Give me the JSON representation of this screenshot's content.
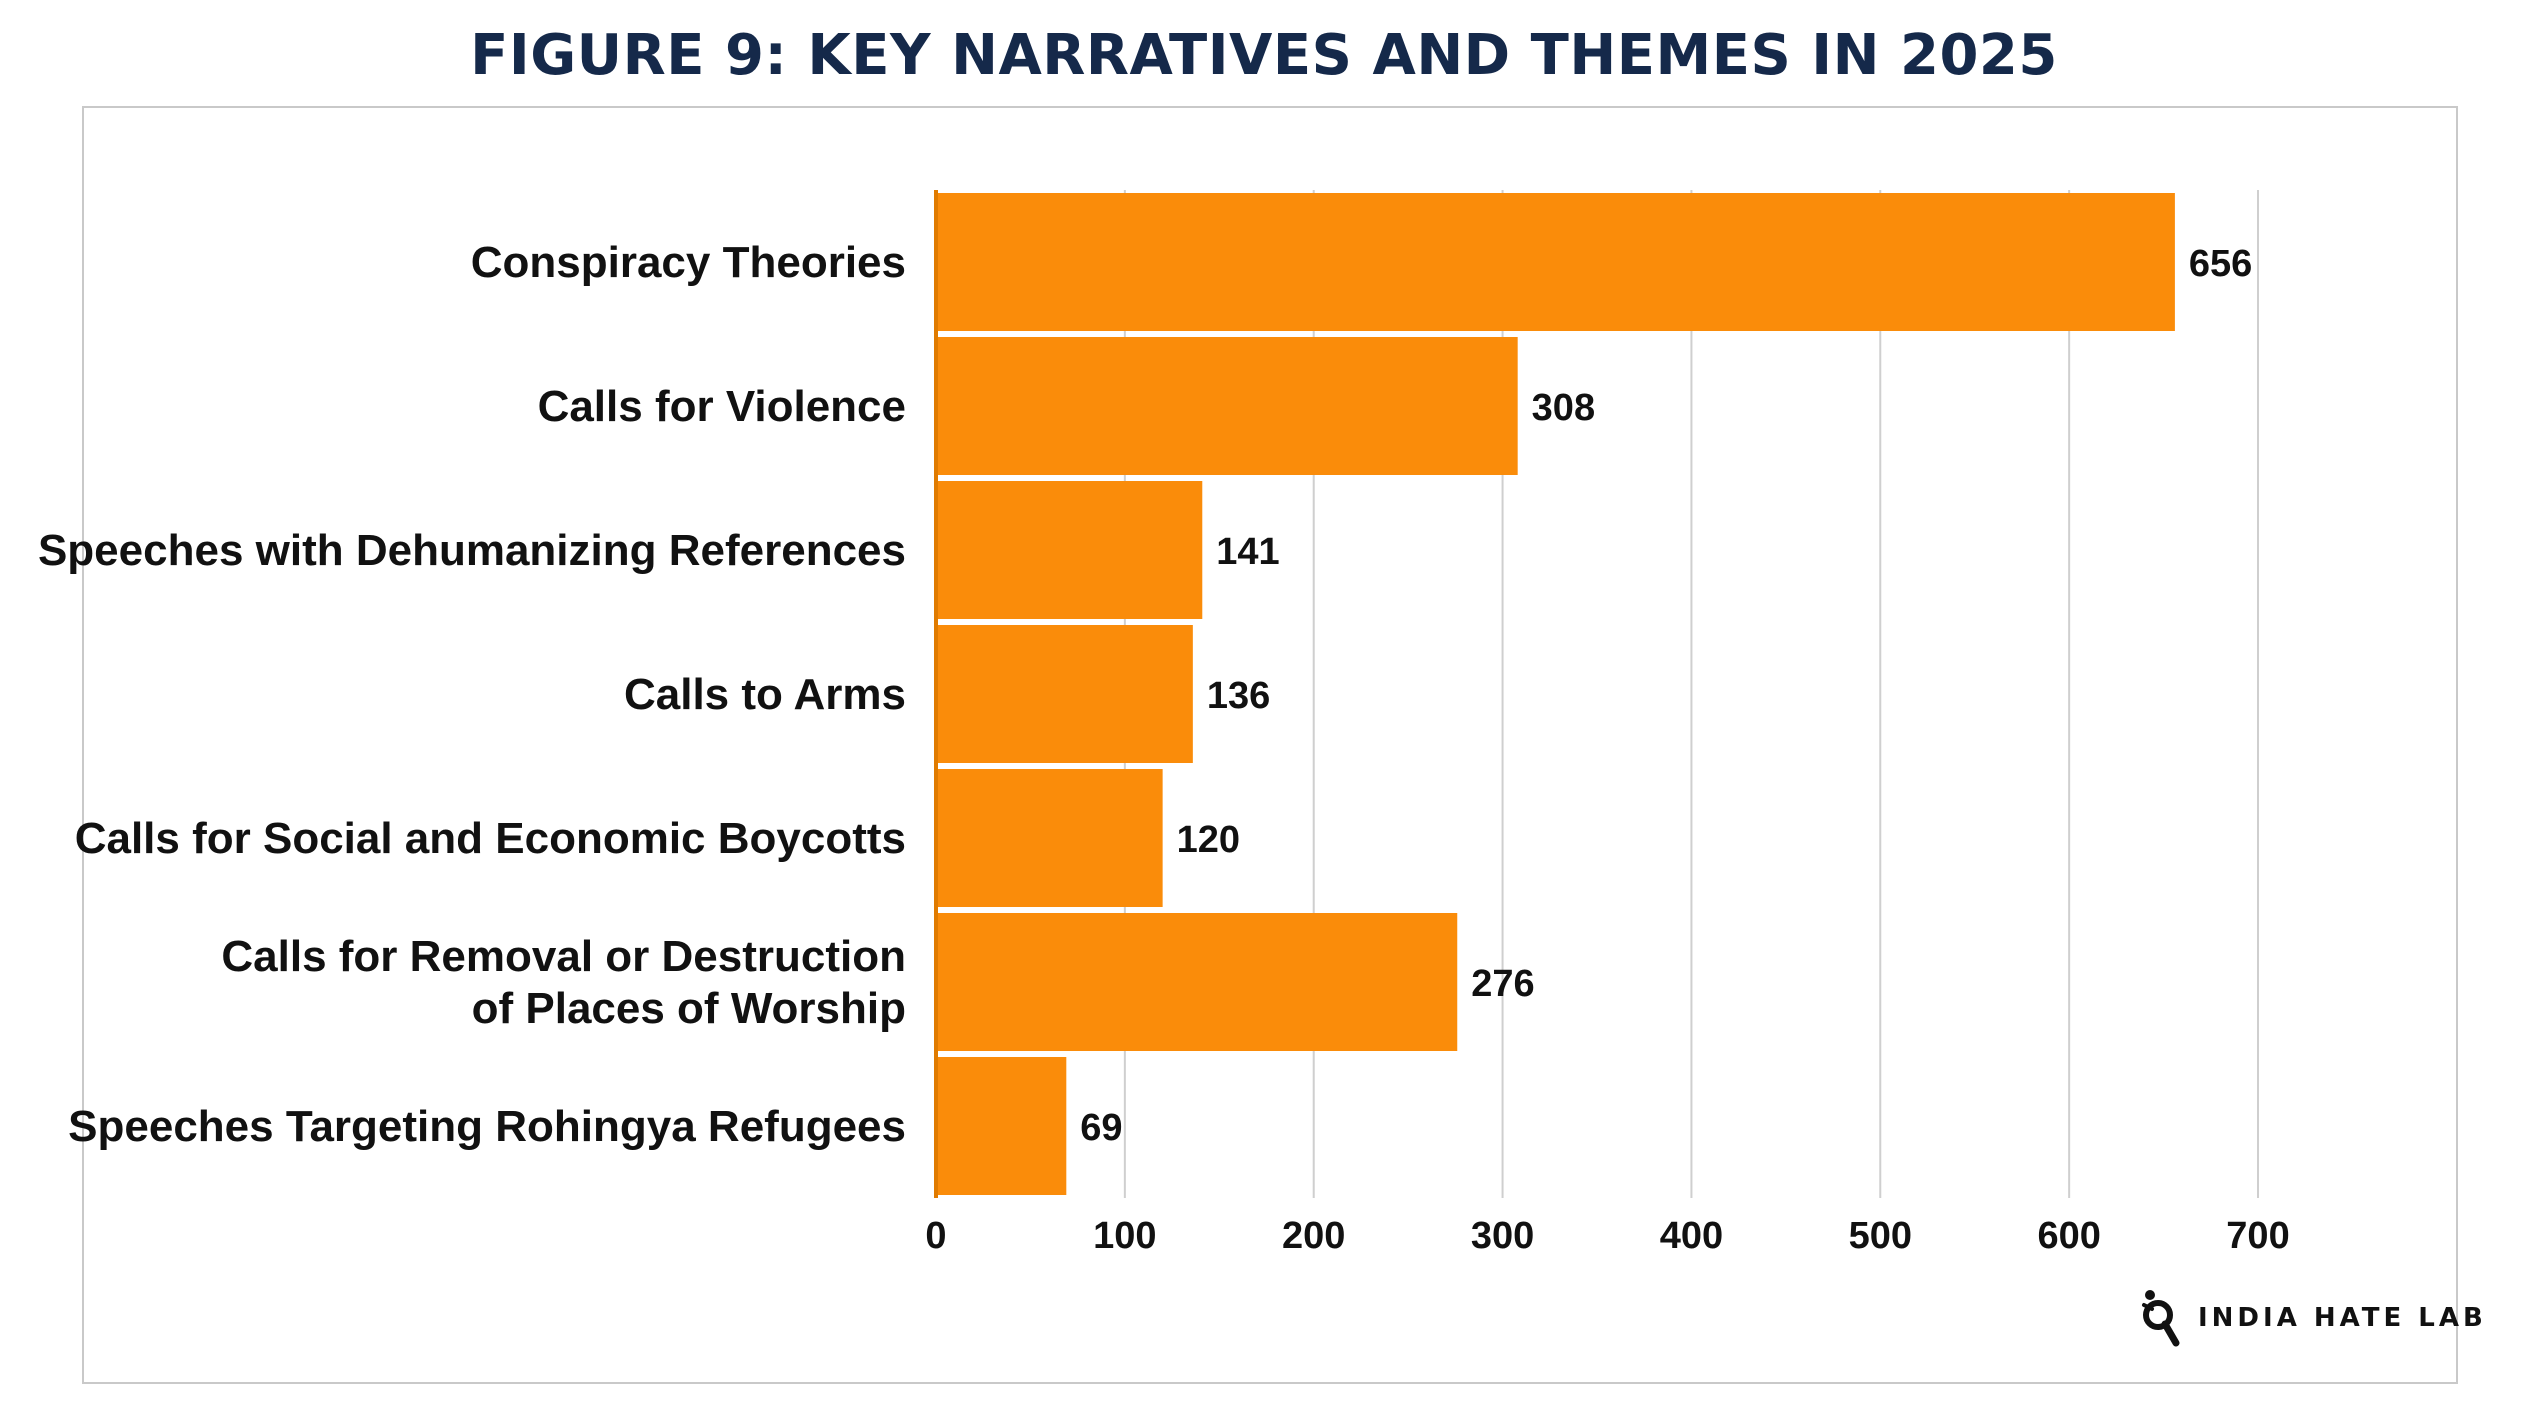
{
  "figure": {
    "title": "FIGURE 9: KEY NARRATIVES AND THEMES IN 2025"
  },
  "brand": {
    "name": "INDIA HATE LAB",
    "icon": "india-hate-lab-logo-icon"
  },
  "colors": {
    "bar": "#FA8C0A",
    "axis": "#E07B00",
    "grid": "#CFCFCF",
    "title": "#15294A",
    "text": "#111111"
  },
  "chart_data": {
    "type": "bar",
    "orientation": "horizontal",
    "title": "FIGURE 9: KEY NARRATIVES AND THEMES IN 2025",
    "xlabel": "",
    "ylabel": "",
    "categories": [
      [
        "Conspiracy Theories"
      ],
      [
        "Calls for Violence"
      ],
      [
        "Speeches with Dehumanizing References"
      ],
      [
        "Calls to Arms"
      ],
      [
        "Calls for Social and Economic Boycotts"
      ],
      [
        "Calls for Removal or Destruction",
        "of Places of Worship"
      ],
      [
        "Speeches Targeting Rohingya Refugees"
      ]
    ],
    "values": [
      656,
      308,
      141,
      136,
      120,
      276,
      69
    ],
    "xlim": [
      0,
      700
    ],
    "ticks": [
      0,
      100,
      200,
      300,
      400,
      500,
      600,
      700
    ],
    "grid": true,
    "legend": "none",
    "data_labels": true
  }
}
